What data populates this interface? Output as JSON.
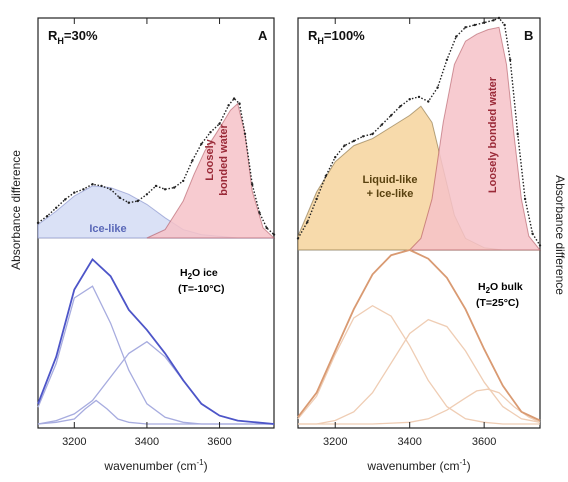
{
  "figure": {
    "ylabel_left": "Absorbance difference",
    "ylabel_right": "Absorbance difference"
  },
  "colors": {
    "ice_fill": "#d4dcf4",
    "loose_fill": "#f6c2c8",
    "liquid_fill": "#f6d49c",
    "blue_curve": "#4d55c8",
    "blue_light": "#a7acdf",
    "orange_curve": "#d99a72",
    "orange_light": "#efcdb4",
    "orange_text": "#d9733d",
    "points": "#222222",
    "divider": "#cccccc"
  },
  "chart_data": [
    {
      "panel": "A",
      "type": "area",
      "title_main": "R",
      "title_sub": "H",
      "title_value": "=30%",
      "letter": "A",
      "xlabel_main": "wavenumber (cm",
      "xlabel_sup": "-1",
      "xlabel_end": ")",
      "xlim": [
        3100,
        3750
      ],
      "xticks": [
        3200,
        3400,
        3600
      ],
      "xtick_labels": [
        "3200",
        "3400",
        "3600"
      ],
      "grid": false,
      "upper": {
        "ylim": [
          0,
          1
        ],
        "regions": [
          {
            "name": "Ice-like",
            "color": "#d4dcf4",
            "text_color": "#5a68b8",
            "x": [
              3100,
              3150,
              3200,
              3250,
              3300,
              3350,
              3400,
              3450,
              3500,
              3550,
              3600,
              3650,
              3700,
              3750
            ],
            "y": [
              0.08,
              0.16,
              0.25,
              0.31,
              0.3,
              0.26,
              0.2,
              0.12,
              0.05,
              0.02,
              0.01,
              0.0,
              0.0,
              0.0
            ]
          },
          {
            "name": "Loosely bonded water",
            "lines": [
              "Loosely",
              "bonded water"
            ],
            "color": "#f6c2c8",
            "text_color": "#9a2a38",
            "x": [
              3400,
              3450,
              3500,
              3530,
              3560,
              3590,
              3610,
              3630,
              3650,
              3670,
              3690,
              3720,
              3750
            ],
            "y": [
              0.0,
              0.05,
              0.22,
              0.38,
              0.52,
              0.62,
              0.69,
              0.76,
              0.8,
              0.62,
              0.28,
              0.06,
              0.0
            ]
          }
        ],
        "measured": {
          "x": [
            3100,
            3125,
            3150,
            3175,
            3200,
            3225,
            3250,
            3275,
            3300,
            3325,
            3350,
            3375,
            3400,
            3425,
            3450,
            3475,
            3500,
            3525,
            3550,
            3575,
            3600,
            3625,
            3640,
            3655,
            3670,
            3690,
            3710,
            3730,
            3750
          ],
          "y": [
            0.09,
            0.13,
            0.18,
            0.23,
            0.27,
            0.29,
            0.32,
            0.31,
            0.29,
            0.24,
            0.21,
            0.22,
            0.26,
            0.31,
            0.29,
            0.3,
            0.34,
            0.46,
            0.56,
            0.63,
            0.68,
            0.79,
            0.83,
            0.8,
            0.62,
            0.32,
            0.15,
            0.06,
            0.02
          ]
        }
      },
      "lower": {
        "ylim": [
          0,
          1
        ],
        "reference_label": [
          "H",
          "2",
          "O ice",
          "(T=-10°C)"
        ],
        "reference_color": "#3d40c0",
        "total": {
          "x": [
            3100,
            3150,
            3200,
            3250,
            3300,
            3350,
            3400,
            3450,
            3500,
            3550,
            3600,
            3650,
            3700,
            3750
          ],
          "y": [
            0.12,
            0.4,
            0.8,
            0.98,
            0.88,
            0.68,
            0.56,
            0.42,
            0.26,
            0.12,
            0.05,
            0.02,
            0.01,
            0.0
          ]
        },
        "components": [
          {
            "x": [
              3100,
              3150,
              3200,
              3250,
              3300,
              3350,
              3400,
              3450,
              3500,
              3550,
              3600,
              3650,
              3700,
              3750
            ],
            "y": [
              0.1,
              0.36,
              0.75,
              0.82,
              0.6,
              0.32,
              0.12,
              0.04,
              0.01,
              0.0,
              0.0,
              0.0,
              0.0,
              0.0
            ]
          },
          {
            "x": [
              3100,
              3150,
              3200,
              3250,
              3300,
              3350,
              3400,
              3450,
              3500,
              3550,
              3600,
              3650,
              3700,
              3750
            ],
            "y": [
              0.0,
              0.02,
              0.06,
              0.14,
              0.28,
              0.42,
              0.49,
              0.4,
              0.26,
              0.12,
              0.05,
              0.02,
              0.01,
              0.0
            ]
          },
          {
            "x": [
              3100,
              3150,
              3200,
              3230,
              3260,
              3290,
              3320,
              3350,
              3400,
              3500,
              3600,
              3750
            ],
            "y": [
              0.0,
              0.01,
              0.03,
              0.09,
              0.14,
              0.09,
              0.03,
              0.01,
              0.0,
              0.0,
              0.0,
              0.0
            ]
          }
        ]
      }
    },
    {
      "panel": "B",
      "type": "area",
      "title_main": "R",
      "title_sub": "H",
      "title_value": "=100%",
      "letter": "B",
      "xlabel_main": "wavenumber (cm",
      "xlabel_sup": "-1",
      "xlabel_end": ")",
      "xlim": [
        3100,
        3750
      ],
      "xticks": [
        3200,
        3400,
        3600
      ],
      "xtick_labels": [
        "3200",
        "3400",
        "3600"
      ],
      "grid": false,
      "upper": {
        "ylim": [
          0,
          1
        ],
        "regions": [
          {
            "name": "Liquid-like + Ice-like",
            "lines": [
              "Liquid-like",
              "+ Ice-like"
            ],
            "color": "#f6d49c",
            "text_color": "#5a4210",
            "x": [
              3100,
              3150,
              3200,
              3250,
              3300,
              3350,
              3400,
              3430,
              3460,
              3490,
              3520,
              3550,
              3600,
              3650,
              3750
            ],
            "y": [
              0.06,
              0.25,
              0.38,
              0.45,
              0.48,
              0.53,
              0.58,
              0.62,
              0.55,
              0.35,
              0.15,
              0.05,
              0.01,
              0.0,
              0.0
            ]
          },
          {
            "name": "Loosely bonded water",
            "lines": [
              "Loosely bonded water"
            ],
            "color": "#f6c2c8",
            "text_color": "#9a2a38",
            "x": [
              3400,
              3430,
              3460,
              3490,
              3520,
              3550,
              3580,
              3610,
              3640,
              3660,
              3680,
              3700,
              3720,
              3750
            ],
            "y": [
              0.0,
              0.05,
              0.22,
              0.55,
              0.8,
              0.9,
              0.93,
              0.95,
              0.96,
              0.8,
              0.5,
              0.22,
              0.06,
              0.0
            ]
          }
        ],
        "measured": {
          "x": [
            3100,
            3125,
            3150,
            3175,
            3200,
            3225,
            3250,
            3275,
            3300,
            3325,
            3350,
            3375,
            3400,
            3425,
            3450,
            3475,
            3500,
            3525,
            3550,
            3575,
            3600,
            3625,
            3640,
            3655,
            3670,
            3690,
            3710,
            3730,
            3750
          ],
          "y": [
            0.05,
            0.12,
            0.22,
            0.32,
            0.4,
            0.45,
            0.47,
            0.49,
            0.5,
            0.54,
            0.58,
            0.62,
            0.65,
            0.66,
            0.64,
            0.7,
            0.82,
            0.92,
            0.96,
            0.97,
            0.98,
            0.99,
            1.0,
            0.97,
            0.82,
            0.5,
            0.22,
            0.07,
            0.02
          ]
        }
      },
      "lower": {
        "ylim": [
          0,
          1
        ],
        "reference_label": [
          "H",
          "2",
          "O bulk",
          "(T=25°C)"
        ],
        "reference_color": "#d9733d",
        "total": {
          "x": [
            3100,
            3150,
            3200,
            3250,
            3300,
            3350,
            3400,
            3450,
            3500,
            3550,
            3600,
            3650,
            3700,
            3750
          ],
          "y": [
            0.04,
            0.18,
            0.42,
            0.66,
            0.86,
            0.97,
            1.0,
            0.95,
            0.84,
            0.66,
            0.43,
            0.22,
            0.07,
            0.02
          ]
        },
        "components": [
          {
            "x": [
              3100,
              3150,
              3200,
              3250,
              3300,
              3350,
              3400,
              3450,
              3500,
              3550,
              3600,
              3650,
              3700,
              3750
            ],
            "y": [
              0.03,
              0.16,
              0.4,
              0.61,
              0.68,
              0.62,
              0.45,
              0.25,
              0.1,
              0.03,
              0.01,
              0.0,
              0.0,
              0.0
            ]
          },
          {
            "x": [
              3100,
              3150,
              3200,
              3250,
              3300,
              3350,
              3400,
              3450,
              3500,
              3550,
              3600,
              3650,
              3700,
              3750
            ],
            "y": [
              0.0,
              0.0,
              0.02,
              0.07,
              0.18,
              0.35,
              0.52,
              0.6,
              0.56,
              0.42,
              0.24,
              0.1,
              0.03,
              0.01
            ]
          },
          {
            "x": [
              3100,
              3200,
              3300,
              3400,
              3450,
              3500,
              3550,
              3580,
              3610,
              3640,
              3680,
              3720,
              3750
            ],
            "y": [
              0.0,
              0.0,
              0.0,
              0.01,
              0.03,
              0.08,
              0.15,
              0.19,
              0.2,
              0.18,
              0.1,
              0.04,
              0.01
            ]
          }
        ]
      }
    }
  ]
}
